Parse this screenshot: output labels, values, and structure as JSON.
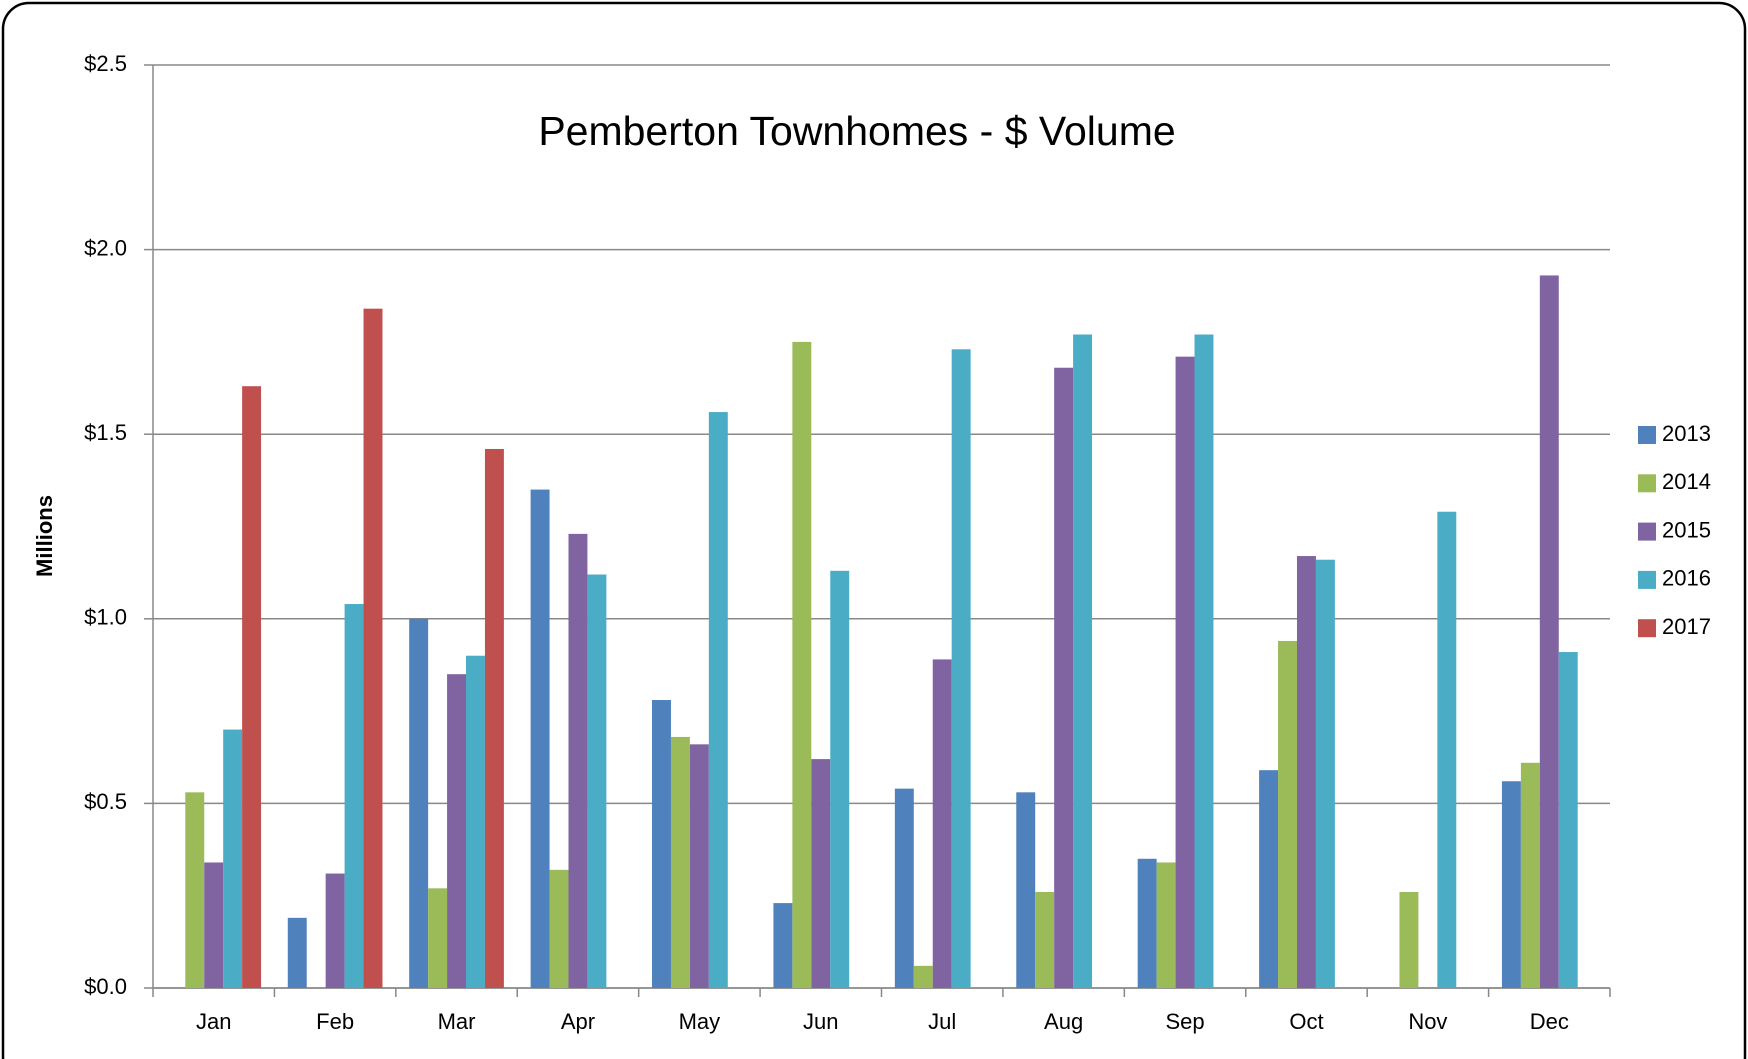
{
  "chart_data": {
    "type": "bar",
    "title": "Pemberton Townhomes - $ Volume",
    "y_label": "Millions",
    "categories": [
      "Jan",
      "Feb",
      "Mar",
      "Apr",
      "May",
      "Jun",
      "Jul",
      "Aug",
      "Sep",
      "Oct",
      "Nov",
      "Dec"
    ],
    "series": [
      {
        "name": "2013",
        "color": "#4f81bd",
        "values": [
          null,
          0.19,
          1.0,
          1.35,
          0.78,
          0.23,
          0.54,
          0.53,
          0.35,
          0.59,
          null,
          0.56
        ]
      },
      {
        "name": "2014",
        "color": "#9bbb59",
        "values": [
          0.53,
          null,
          0.27,
          0.32,
          0.68,
          1.75,
          0.06,
          0.26,
          0.34,
          0.94,
          0.26,
          0.61
        ]
      },
      {
        "name": "2015",
        "color": "#8064a2",
        "values": [
          0.34,
          0.31,
          0.85,
          1.23,
          0.66,
          0.62,
          0.89,
          1.68,
          1.71,
          1.17,
          null,
          1.93
        ]
      },
      {
        "name": "2016",
        "color": "#4bacc6",
        "values": [
          0.7,
          1.04,
          0.9,
          1.12,
          1.56,
          1.13,
          1.73,
          1.77,
          1.77,
          1.16,
          1.29,
          0.91
        ]
      },
      {
        "name": "2017",
        "color": "#c0504d",
        "values": [
          1.63,
          1.84,
          1.46,
          null,
          null,
          null,
          null,
          null,
          null,
          null,
          null,
          null
        ]
      }
    ],
    "ylim": [
      0,
      2.5
    ],
    "yticks": [
      {
        "value": 0,
        "label": "$0.0"
      },
      {
        "value": 0.5,
        "label": "$0.5"
      },
      {
        "value": 1,
        "label": "$1.0"
      },
      {
        "value": 1.5,
        "label": "$1.5"
      },
      {
        "value": 2,
        "label": "$2.0"
      },
      {
        "value": 2.5,
        "label": "$2.5"
      }
    ],
    "grid": true,
    "legend": "right"
  }
}
